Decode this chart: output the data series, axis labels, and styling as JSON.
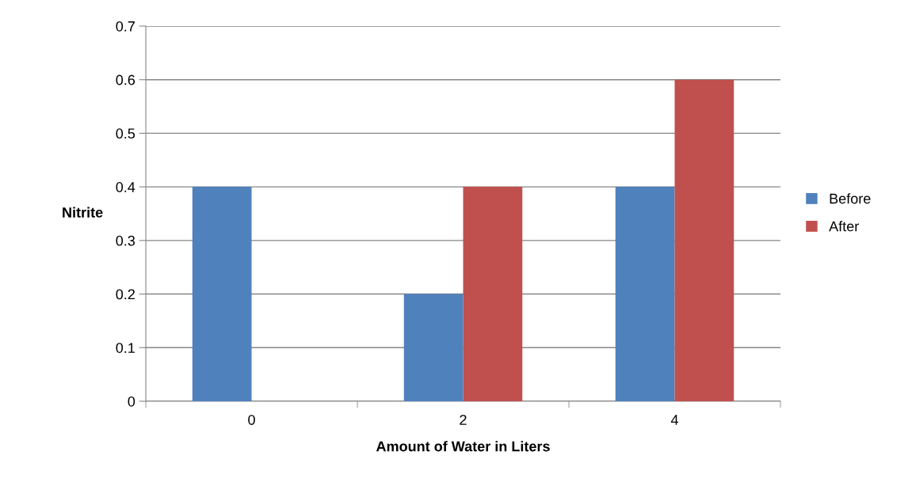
{
  "chart_data": {
    "type": "bar",
    "xlabel": "Amount of Water in Liters",
    "ylabel": "Nitrite",
    "categories": [
      "0",
      "2",
      "4"
    ],
    "series": [
      {
        "name": "Before",
        "color": "#4f81bd",
        "values": [
          0.4,
          0.2,
          0.4
        ]
      },
      {
        "name": "After",
        "color": "#c0504d",
        "values": [
          0,
          0.4,
          0.6
        ]
      }
    ],
    "ylim": [
      0,
      0.7
    ],
    "yticks": [
      0,
      0.1,
      0.2,
      0.3,
      0.4,
      0.5,
      0.6,
      0.7
    ],
    "grid": "y",
    "legend": "right"
  }
}
